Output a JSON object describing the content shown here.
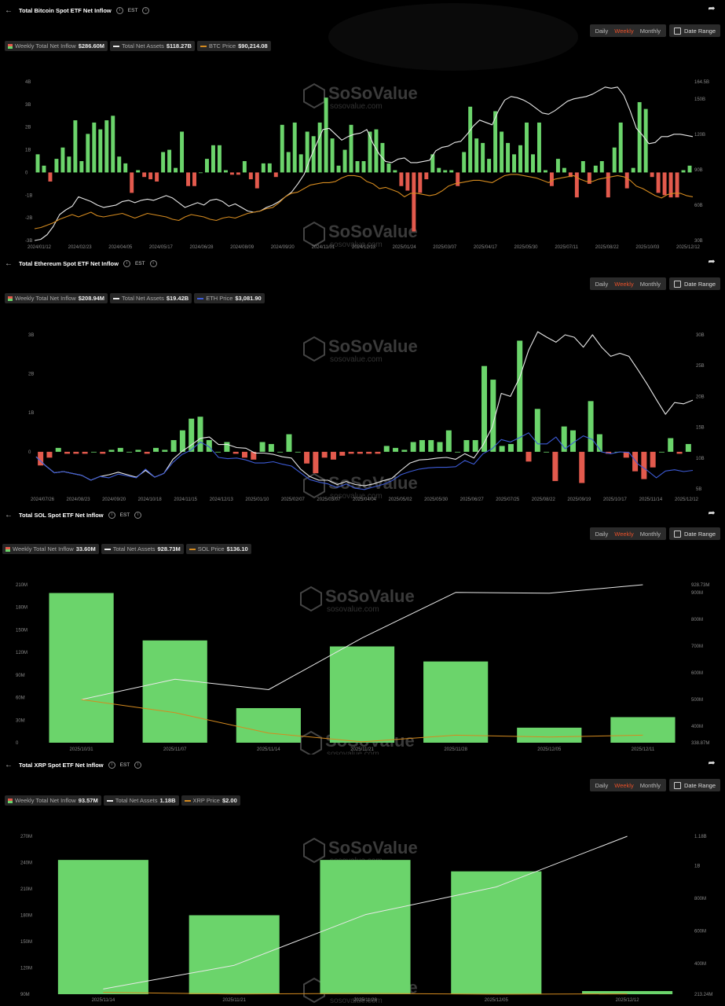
{
  "colors": {
    "pos": "#6bd46b",
    "neg": "#e35a4d",
    "assets": "#e8e8e8",
    "btc": "#d48a1f",
    "eth": "#3d5bd6",
    "sol": "#d48a1f",
    "xrp": "#d48a1f",
    "accent": "#e8512a"
  },
  "watermark": {
    "brand": "SoSoValue",
    "url": "sosovalue.com"
  },
  "controls": {
    "daily": "Daily",
    "weekly": "Weekly",
    "monthly": "Monthly",
    "date_range": "Date Range"
  },
  "panels": [
    {
      "id": "btc",
      "title": "Total Bitcoin Spot ETF Net Inflow",
      "tz": "EST",
      "legend": {
        "inflow_label": "Weekly Total Net Inflow",
        "inflow_value": "$286.60M",
        "assets_label": "Total Net Assets",
        "assets_value": "$118.27B",
        "price_label": "BTC Price",
        "price_value": "$90,214.08"
      }
    },
    {
      "id": "eth",
      "title": "Total Ethereum Spot ETF Net Inflow",
      "tz": "EST",
      "legend": {
        "inflow_label": "Weekly Total Net Inflow",
        "inflow_value": "$208.94M",
        "assets_label": "Total Net Assets",
        "assets_value": "$19.42B",
        "price_label": "ETH Price",
        "price_value": "$3,081.90"
      }
    },
    {
      "id": "sol",
      "title": "Total SOL Spot ETF Net Inflow",
      "tz": "EST",
      "legend": {
        "inflow_label": "Weekly Total Net Inflow",
        "inflow_value": "33.60M",
        "assets_label": "Total Net Assets",
        "assets_value": "928.73M",
        "price_label": "SOL Price",
        "price_value": "$136.10"
      }
    },
    {
      "id": "xrp",
      "title": "Total XRP Spot ETF Net Inflow",
      "tz": "EST",
      "legend": {
        "inflow_label": "Weekly Total Net Inflow",
        "inflow_value": "93.57M",
        "assets_label": "Total Net Assets",
        "assets_value": "1.18B",
        "price_label": "XRP Price",
        "price_value": "$2.00"
      }
    }
  ],
  "chart_data": [
    {
      "type": "bar",
      "id": "btc",
      "left_ticks": [
        "4B",
        "3B",
        "2B",
        "1B",
        "0",
        "-1B",
        "-2B",
        "-3B"
      ],
      "ylim": [
        -3,
        4
      ],
      "right_ticks": [
        "164.5B",
        "150B",
        "120B",
        "90B",
        "60B",
        "30B"
      ],
      "right_tick_values": [
        164.5,
        150,
        120,
        90,
        60,
        30
      ],
      "y2lim": [
        30,
        164.5
      ],
      "x_labels": [
        "2024/01/12",
        "2024/02/23",
        "2024/04/05",
        "2024/05/17",
        "2024/06/28",
        "2024/08/09",
        "2024/09/20",
        "2024/11/01",
        "2024/12/13",
        "2025/01/24",
        "2025/03/07",
        "2025/04/17",
        "2025/05/30",
        "2025/07/11",
        "2025/08/22",
        "2025/10/03",
        "2025/12/12"
      ],
      "values": [
        0.8,
        0.3,
        -0.4,
        0.6,
        1.1,
        0.7,
        2.3,
        0.5,
        1.7,
        2.2,
        1.9,
        2.3,
        2.5,
        0.7,
        0.4,
        -0.9,
        0.1,
        -0.2,
        -0.3,
        -0.4,
        0.9,
        1.0,
        0.2,
        1.8,
        -0.6,
        -0.6,
        0.0,
        0.6,
        1.2,
        1.2,
        0.1,
        -0.1,
        -0.1,
        0.5,
        -0.3,
        -0.7,
        0.4,
        0.4,
        -0.2,
        2.1,
        0.9,
        2.2,
        0.8,
        1.8,
        1.6,
        2.2,
        3.3,
        1.5,
        0.3,
        1.0,
        2.1,
        0.5,
        0.5,
        1.8,
        1.9,
        1.3,
        0.4,
        0.1,
        -0.6,
        -0.8,
        -2.6,
        -0.9,
        -0.3,
        0.8,
        0.2,
        0.1,
        0.1,
        -0.6,
        0.9,
        2.9,
        1.5,
        1.3,
        0.6,
        2.7,
        1.8,
        1.3,
        0.8,
        1.2,
        2.2,
        0.8,
        2.2,
        0.1,
        -0.6,
        0.6,
        0.2,
        -0.2,
        -1.1,
        0.5,
        -0.5,
        0.3,
        0.5,
        -1.1,
        1.1,
        2.2,
        -0.7,
        0.2,
        3.1,
        2.8,
        -0.2,
        -0.9,
        -1.0,
        -1.1,
        -1.1,
        0.1,
        0.3
      ],
      "series": [
        {
          "name": "Total Net Assets",
          "values": [
            30,
            31,
            35,
            42,
            52,
            56,
            59,
            67,
            65,
            63,
            60,
            58,
            59,
            60,
            63,
            64,
            62,
            64,
            65,
            64,
            66,
            68,
            66,
            62,
            58,
            60,
            62,
            60,
            64,
            65,
            63,
            59,
            61,
            58,
            55,
            54,
            55,
            58,
            60,
            63,
            67,
            71,
            78,
            86,
            100,
            112,
            124,
            125,
            120,
            115,
            118,
            120,
            121,
            124,
            112,
            103,
            97,
            96,
            99,
            100,
            96,
            96,
            97,
            98,
            106,
            109,
            110,
            113,
            114,
            120,
            127,
            132,
            130,
            128,
            140,
            149,
            152,
            151,
            149,
            146,
            142,
            138,
            137,
            140,
            144,
            148,
            150,
            151,
            152,
            154,
            157,
            160,
            159,
            160,
            153,
            140,
            125,
            119,
            112,
            113,
            118,
            118,
            120,
            120,
            119,
            118
          ]
        },
        {
          "name": "BTC Price",
          "values": [
            40,
            41,
            43,
            45,
            48,
            50,
            52,
            50,
            52,
            54,
            51,
            50,
            51,
            52,
            53,
            51,
            49,
            51,
            53,
            52,
            51,
            50,
            48,
            47,
            50,
            52,
            51,
            50,
            48,
            47,
            49,
            50,
            49,
            51,
            53,
            54,
            55,
            57,
            58,
            62,
            67,
            70,
            71,
            74,
            77,
            78,
            79,
            79,
            80,
            83,
            85,
            85,
            84,
            80,
            78,
            74,
            75,
            73,
            71,
            67,
            70,
            70,
            69,
            68,
            69,
            72,
            76,
            78,
            79,
            80,
            81,
            81,
            80,
            79,
            82,
            85,
            86,
            86,
            85,
            84,
            83,
            81,
            79,
            82,
            83,
            84,
            85,
            82,
            80,
            80,
            82,
            83,
            84,
            85,
            84,
            81,
            76,
            74,
            71,
            68,
            66,
            69,
            70,
            70,
            68,
            67
          ]
        }
      ]
    },
    {
      "type": "bar",
      "id": "eth",
      "left_ticks": [
        "3B",
        "2B",
        "1B",
        "0"
      ],
      "ylim": [
        -0.95,
        3
      ],
      "right_ticks": [
        "30B",
        "25B",
        "20B",
        "15B",
        "10B",
        "5B"
      ],
      "right_tick_values": [
        30,
        25,
        20,
        15,
        10,
        5
      ],
      "y2lim": [
        5,
        30
      ],
      "x_labels": [
        "2024/07/26",
        "2024/08/23",
        "2024/09/20",
        "2024/10/18",
        "2024/11/15",
        "2024/12/13",
        "2025/01/10",
        "2025/02/07",
        "2025/03/07",
        "2025/04/04",
        "2025/05/02",
        "2025/05/30",
        "2025/06/27",
        "2025/07/25",
        "2025/08/22",
        "2025/09/19",
        "2025/10/17",
        "2025/11/14",
        "2025/12/12"
      ],
      "values": [
        -0.35,
        -0.15,
        0.1,
        -0.05,
        -0.05,
        -0.05,
        0.0,
        -0.05,
        0.05,
        0.1,
        0.0,
        0.05,
        -0.05,
        0.1,
        0.05,
        0.3,
        0.55,
        0.85,
        0.9,
        0.3,
        0.0,
        0.25,
        -0.05,
        -0.15,
        -0.2,
        0.25,
        0.2,
        0.0,
        0.45,
        0.0,
        -0.3,
        -0.55,
        -0.15,
        -0.2,
        -0.1,
        -0.05,
        -0.05,
        -0.05,
        -0.05,
        0.15,
        0.1,
        0.05,
        0.25,
        0.3,
        0.3,
        0.25,
        0.55,
        0.0,
        0.3,
        0.3,
        2.2,
        1.85,
        0.15,
        0.2,
        2.85,
        -0.25,
        1.1,
        0.0,
        -0.75,
        0.65,
        0.55,
        -0.8,
        1.3,
        0.45,
        -0.05,
        0.0,
        -0.15,
        -0.5,
        -0.7,
        -0.4,
        0.0,
        0.35,
        -0.05,
        0.2
      ],
      "series": [
        {
          "name": "Total Net Assets",
          "values": [
            10.2,
            8.8,
            7.6,
            7.8,
            7.5,
            7.2,
            6.4,
            7.0,
            7.3,
            7.7,
            7.3,
            6.9,
            8.0,
            6.9,
            7.5,
            9.8,
            11.1,
            12.1,
            13.2,
            13.4,
            12.2,
            12.2,
            11.7,
            11.6,
            10.8,
            10.8,
            10.6,
            10.2,
            10.0,
            8.2,
            7.0,
            6.4,
            6.4,
            5.7,
            6.2,
            5.7,
            5.5,
            5.8,
            6.3,
            6.7,
            8.0,
            9.2,
            9.7,
            9.8,
            10.0,
            10.1,
            9.8,
            10.7,
            10.0,
            12.1,
            15.0,
            20.5,
            20.0,
            23.0,
            27.5,
            30.5,
            29.6,
            28.8,
            30.0,
            29.6,
            28.0,
            30.0,
            28.0,
            26.5,
            27.0,
            26.5,
            24.3,
            22.0,
            19.5,
            17.1,
            19.0,
            18.8,
            19.4
          ]
        },
        {
          "name": "ETH Price",
          "values": [
            10.2,
            8.8,
            7.6,
            7.8,
            7.5,
            7.2,
            6.4,
            7.0,
            6.8,
            7.4,
            7.1,
            6.8,
            8.2,
            6.9,
            7.5,
            9.3,
            10.6,
            11.3,
            12.6,
            11.8,
            10.1,
            9.9,
            10.0,
            9.7,
            9.2,
            9.2,
            9.4,
            9.0,
            8.7,
            7.6,
            6.5,
            6.1,
            5.8,
            5.2,
            5.8,
            5.1,
            4.9,
            5.3,
            5.7,
            6.3,
            7.3,
            7.8,
            8.2,
            8.4,
            8.5,
            8.5,
            8.6,
            9.6,
            9.0,
            10.7,
            11.5,
            13.0,
            12.6,
            13.3,
            14.1,
            12.3,
            12.3,
            13.4,
            11.5,
            12.6,
            13.6,
            13.0,
            11.0,
            10.7,
            11.0,
            10.9,
            9.0,
            8.0,
            6.8,
            7.9,
            8.1,
            7.8,
            8.0
          ]
        }
      ]
    },
    {
      "type": "bar",
      "id": "sol",
      "left_ticks": [
        "210M",
        "180M",
        "150M",
        "120M",
        "90M",
        "60M",
        "30M",
        "0"
      ],
      "ylim": [
        0,
        210
      ],
      "right_ticks": [
        "928.73M",
        "900M",
        "800M",
        "700M",
        "600M",
        "500M",
        "400M",
        "338.87M"
      ],
      "right_tick_values": [
        928.73,
        900,
        800,
        700,
        600,
        500,
        400,
        338.87
      ],
      "y2lim": [
        338.87,
        928.73
      ],
      "categories": [
        "2025/10/31",
        "2025/11/07",
        "2025/11/14",
        "2025/11/21",
        "2025/11/28",
        "2025/12/05",
        "2025/12/11"
      ],
      "values": [
        199,
        136,
        46,
        128,
        108,
        20,
        34
      ],
      "series": [
        {
          "name": "Total Net Assets",
          "values": [
            500,
            576,
            537,
            730,
            900,
            897,
            928.73
          ]
        },
        {
          "name": "SOL Price",
          "values": [
            500,
            451,
            375,
            342,
            367,
            360,
            367
          ]
        }
      ]
    },
    {
      "type": "bar",
      "id": "xrp",
      "left_ticks": [
        "270M",
        "240M",
        "210M",
        "180M",
        "150M",
        "120M",
        "90M"
      ],
      "ylim": [
        90,
        270
      ],
      "right_ticks": [
        "1.18B",
        "1B",
        "800M",
        "600M",
        "400M",
        "213.24M"
      ],
      "right_tick_values": [
        1180,
        1000,
        800,
        600,
        400,
        213.24
      ],
      "y2lim": [
        213.24,
        1180
      ],
      "categories": [
        "2025/11/14",
        "2025/11/21",
        "2025/11/28",
        "2025/12/05",
        "2025/12/12"
      ],
      "values": [
        243,
        180,
        243,
        230,
        93.57
      ],
      "series": [
        {
          "name": "Total Net Assets",
          "values": [
            245,
            390,
            700,
            870,
            1180
          ]
        },
        {
          "name": "XRP Price",
          "values": [
            225,
            214,
            218,
            213,
            215
          ]
        }
      ]
    }
  ]
}
